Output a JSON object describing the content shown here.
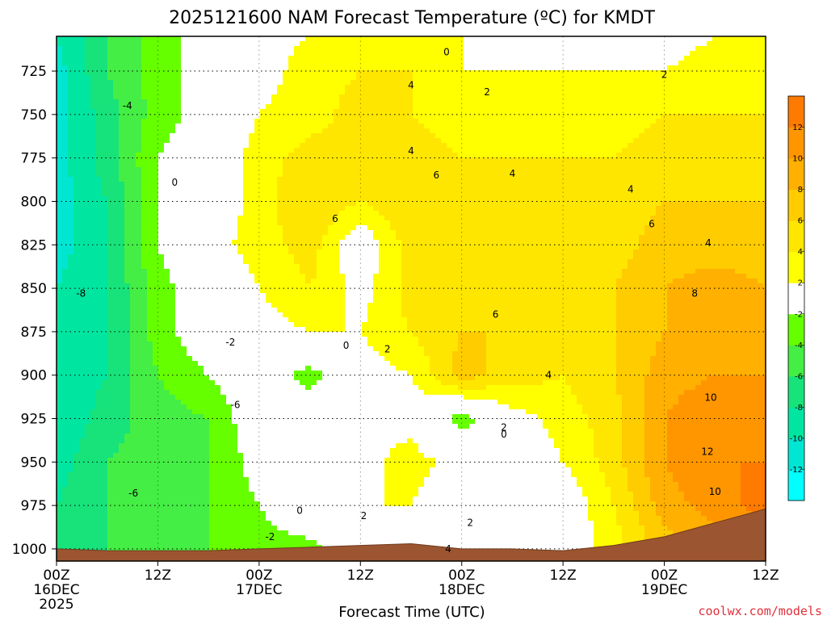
{
  "chart_data": {
    "type": "heatmap",
    "title": "2025121600 NAM Forecast Temperature (ºC) for KMDT",
    "xlabel": "Forecast Time (UTC)",
    "ylabel": "",
    "credit": "coolwx.com/models",
    "x_ticks": [
      {
        "hours": 0,
        "label": "00Z",
        "sub": "16DEC",
        "sub2": "2025"
      },
      {
        "hours": 12,
        "label": "12Z",
        "sub": "",
        "sub2": ""
      },
      {
        "hours": 24,
        "label": "00Z",
        "sub": "17DEC",
        "sub2": ""
      },
      {
        "hours": 36,
        "label": "12Z",
        "sub": "",
        "sub2": ""
      },
      {
        "hours": 48,
        "label": "00Z",
        "sub": "18DEC",
        "sub2": ""
      },
      {
        "hours": 60,
        "label": "12Z",
        "sub": "",
        "sub2": ""
      },
      {
        "hours": 72,
        "label": "00Z",
        "sub": "19DEC",
        "sub2": ""
      },
      {
        "hours": 84,
        "label": "12Z",
        "sub": "",
        "sub2": ""
      }
    ],
    "xlim_hours": [
      0,
      84
    ],
    "y_ticks": [
      "725",
      "750",
      "775",
      "800",
      "825",
      "850",
      "875",
      "900",
      "925",
      "950",
      "975",
      "1000"
    ],
    "ylim_hpa": [
      1007,
      705
    ],
    "grid": "dotted",
    "colorbar": {
      "position": "right",
      "levels": [
        -14,
        -12,
        -10,
        -8,
        -6,
        -4,
        -2,
        2,
        4,
        6,
        8,
        10,
        12,
        14
      ],
      "colors": [
        "#00ffff",
        "#00e6d2",
        "#00e6a0",
        "#17e37a",
        "#44ee44",
        "#66ff00",
        "#ffffff",
        "#ffff00",
        "#ffe600",
        "#ffcc00",
        "#ffb000",
        "#ff9600",
        "#ff7a00"
      ],
      "tick_labels": [
        "-12",
        "-10",
        "-8",
        "-6",
        "-4",
        "-2",
        "2",
        "4",
        "6",
        "8",
        "10",
        "12"
      ]
    },
    "temperature_grid": {
      "pressure_hpa": [
        705,
        725,
        750,
        775,
        800,
        825,
        850,
        875,
        900,
        925,
        950,
        975,
        1000
      ],
      "hours": [
        0,
        6,
        12,
        18,
        24,
        30,
        36,
        42,
        48,
        54,
        60,
        66,
        72,
        78,
        84
      ],
      "values_c": [
        [
          -10,
          -6,
          -3,
          -1,
          1,
          2,
          3,
          3,
          2,
          1,
          1,
          1,
          1,
          2,
          3
        ],
        [
          -11,
          -6,
          -3,
          -1,
          1,
          3,
          4,
          4,
          2,
          2,
          2,
          2,
          2,
          3,
          3
        ],
        [
          -11,
          -7,
          -3,
          -1,
          2,
          3,
          5,
          4,
          3,
          3,
          3,
          3,
          4,
          4,
          4
        ],
        [
          -11,
          -7,
          -2,
          0,
          3,
          5,
          4,
          5,
          4,
          4,
          4,
          4,
          5,
          5,
          5
        ],
        [
          -11,
          -8,
          -2,
          0,
          3,
          6,
          4,
          6,
          4,
          4,
          4,
          5,
          6,
          6,
          6
        ],
        [
          -11,
          -8,
          -2,
          1,
          3,
          5,
          0,
          5,
          4,
          4,
          4,
          5,
          7,
          7,
          7
        ],
        [
          -10,
          -8,
          -3,
          0,
          2,
          4,
          1,
          5,
          5,
          5,
          5,
          6,
          8,
          9,
          8
        ],
        [
          -10,
          -8,
          -3,
          0,
          1,
          2,
          2,
          4,
          6,
          6,
          5,
          6,
          8,
          9,
          9
        ],
        [
          -10,
          -8,
          -4,
          -2,
          0,
          -3,
          1,
          2,
          7,
          5,
          4,
          6,
          9,
          10,
          10
        ],
        [
          -10,
          -7,
          -5,
          -4,
          0,
          0,
          2,
          1,
          -3,
          1,
          3,
          5,
          10,
          12,
          11
        ],
        [
          -9,
          -6,
          -5,
          -4,
          -1,
          0,
          1,
          3,
          1,
          -1,
          2,
          5,
          10,
          12,
          12
        ],
        [
          -8,
          -6,
          -5,
          -4,
          -2,
          1,
          2,
          2,
          0,
          0,
          0,
          4,
          9,
          11,
          13
        ],
        [
          -7,
          -6,
          -5,
          -4,
          -3,
          -3,
          0,
          2,
          0,
          0,
          0,
          3,
          7,
          9,
          10
        ]
      ]
    },
    "contour_labels": [
      {
        "text": "0",
        "hours": 46.2,
        "hpa": 714
      },
      {
        "text": "4",
        "hours": 42.0,
        "hpa": 733
      },
      {
        "text": "2",
        "hours": 51.0,
        "hpa": 737
      },
      {
        "text": "2",
        "hours": 72.0,
        "hpa": 727
      },
      {
        "text": "-4",
        "hours": 8.4,
        "hpa": 745
      },
      {
        "text": "4",
        "hours": 42.0,
        "hpa": 771
      },
      {
        "text": "6",
        "hours": 45.0,
        "hpa": 785
      },
      {
        "text": "4",
        "hours": 54.0,
        "hpa": 784
      },
      {
        "text": "4",
        "hours": 68.0,
        "hpa": 793
      },
      {
        "text": "0",
        "hours": 14.0,
        "hpa": 789
      },
      {
        "text": "6",
        "hours": 33.0,
        "hpa": 810
      },
      {
        "text": "6",
        "hours": 70.5,
        "hpa": 813
      },
      {
        "text": "4",
        "hours": 77.2,
        "hpa": 824
      },
      {
        "text": "8",
        "hours": 75.6,
        "hpa": 853
      },
      {
        "text": "-8",
        "hours": 2.9,
        "hpa": 853
      },
      {
        "text": "6",
        "hours": 52.0,
        "hpa": 865
      },
      {
        "text": "-2",
        "hours": 20.6,
        "hpa": 881
      },
      {
        "text": "0",
        "hours": 34.3,
        "hpa": 883
      },
      {
        "text": "2",
        "hours": 39.2,
        "hpa": 885
      },
      {
        "text": "4",
        "hours": 58.3,
        "hpa": 900
      },
      {
        "text": "-6",
        "hours": 21.2,
        "hpa": 917
      },
      {
        "text": "10",
        "hours": 77.5,
        "hpa": 913
      },
      {
        "text": "2",
        "hours": 53.0,
        "hpa": 930
      },
      {
        "text": "0",
        "hours": 53.0,
        "hpa": 934
      },
      {
        "text": "12",
        "hours": 77.1,
        "hpa": 944
      },
      {
        "text": "-6",
        "hours": 9.1,
        "hpa": 968
      },
      {
        "text": "0",
        "hours": 28.8,
        "hpa": 978
      },
      {
        "text": "2",
        "hours": 36.4,
        "hpa": 981
      },
      {
        "text": "2",
        "hours": 49.0,
        "hpa": 985
      },
      {
        "text": "-2",
        "hours": 25.3,
        "hpa": 993
      },
      {
        "text": "10",
        "hours": 78.0,
        "hpa": 967
      },
      {
        "text": "4",
        "hours": 46.4,
        "hpa": 1000
      }
    ],
    "surface_pressure_hpa": {
      "hours": [
        0,
        6,
        12,
        18,
        24,
        30,
        36,
        42,
        48,
        54,
        60,
        66,
        72,
        78,
        84
      ],
      "values": [
        1000,
        1001,
        1001,
        1001,
        1000,
        999,
        998,
        997,
        1000,
        1000,
        1001,
        998,
        993,
        985,
        977
      ]
    }
  }
}
